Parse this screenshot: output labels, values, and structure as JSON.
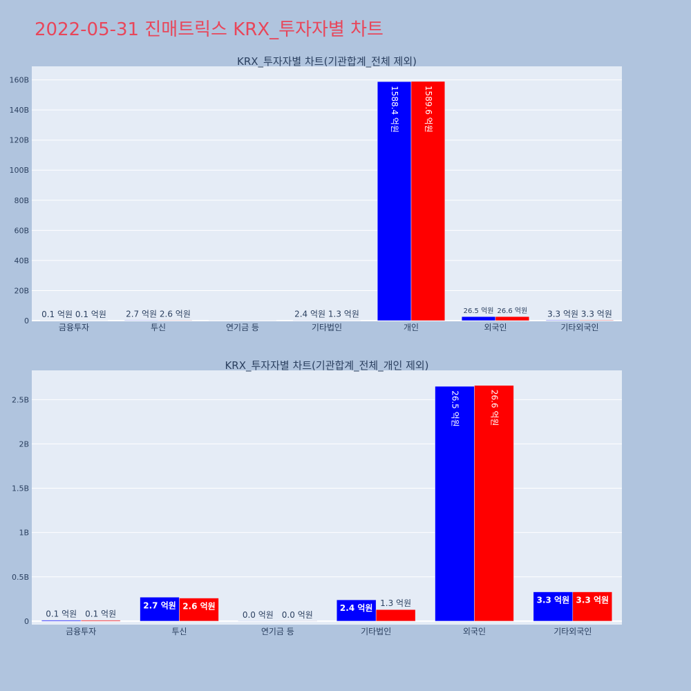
{
  "page_title": "2022-05-31 진매트릭스 KRX_투자자별 차트",
  "colors": {
    "buy": "#0000ff",
    "sell": "#ff0000",
    "plot_bg": "#e5ecf6",
    "page_bg": "#b0c4de",
    "title": "#e8465a",
    "text": "#2a3f5f"
  },
  "chart_data": [
    {
      "type": "bar",
      "title": "KRX_투자자별 차트(기관합계_전체 제외)",
      "categories": [
        "금융투자",
        "투신",
        "연기금 등",
        "기타법인",
        "개인",
        "외국인",
        "기타외국인"
      ],
      "series": [
        {
          "values": [
            10000000,
            270000000,
            0,
            240000000,
            158840000000,
            2650000000,
            330000000
          ],
          "labels": [
            "0.1 억원",
            "2.7 억원",
            "",
            "2.4 억원",
            "1588.4 억원",
            "26.5 억원",
            "3.3 억원"
          ]
        },
        {
          "values": [
            10000000,
            260000000,
            0,
            130000000,
            158960000000,
            2660000000,
            330000000
          ],
          "labels": [
            "0.1 억원",
            "2.6 억원",
            "",
            "1.3 억원",
            "1589.6 억원",
            "26.6 억원",
            "3.3 억원"
          ]
        }
      ],
      "ylim": [
        0,
        169000000000
      ],
      "yticks": [
        0,
        20000000000,
        40000000000,
        60000000000,
        80000000000,
        100000000000,
        120000000000,
        140000000000,
        160000000000
      ],
      "yticklabels": [
        "0",
        "20B",
        "40B",
        "60B",
        "80B",
        "100B",
        "120B",
        "140B",
        "160B"
      ],
      "grid": true
    },
    {
      "type": "bar",
      "title": "KRX_투자자별 차트(기관합계_전체_개인 제외)",
      "categories": [
        "금융투자",
        "투신",
        "연기금 등",
        "기타법인",
        "외국인",
        "기타외국인"
      ],
      "series": [
        {
          "values": [
            10000000,
            270000000,
            0,
            240000000,
            2650000000,
            330000000
          ],
          "labels": [
            "0.1 억원",
            "2.7 억원",
            "0.0 억원",
            "2.4 억원",
            "26.5 억원",
            "3.3 억원"
          ]
        },
        {
          "values": [
            10000000,
            260000000,
            0,
            130000000,
            2660000000,
            330000000
          ],
          "labels": [
            "0.1 억원",
            "2.6 억원",
            "0.0 억원",
            "1.3 억원",
            "26.6 억원",
            "3.3 억원"
          ]
        }
      ],
      "ylim": [
        -40000000,
        2830000000
      ],
      "yticks": [
        0,
        500000000,
        1000000000,
        1500000000,
        2000000000,
        2500000000
      ],
      "yticklabels": [
        "0",
        "0.5B",
        "1B",
        "1.5B",
        "2B",
        "2.5B"
      ],
      "grid": true
    }
  ]
}
